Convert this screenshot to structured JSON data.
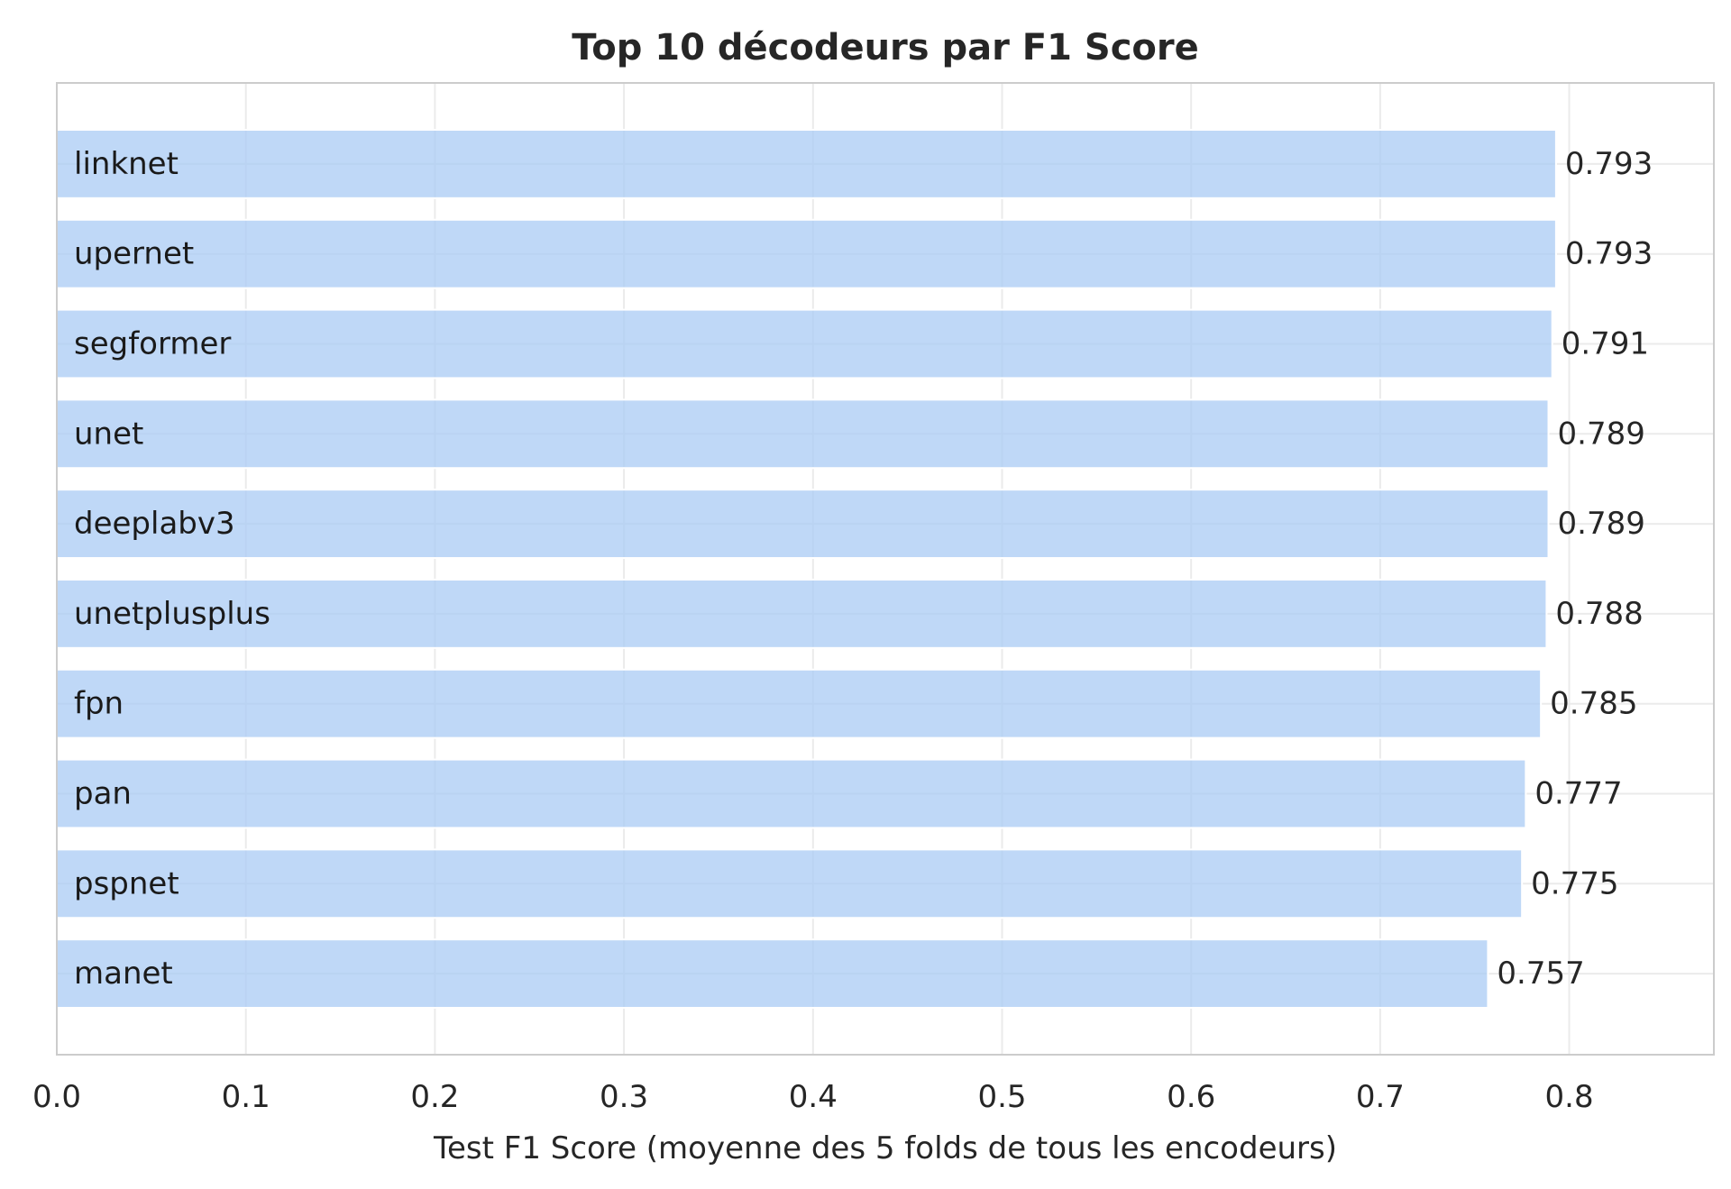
{
  "chart_data": {
    "type": "bar",
    "orientation": "horizontal",
    "title": "Top 10 décodeurs par F1 Score",
    "xlabel": "Test F1 Score (moyenne des 5 folds de tous les encodeurs)",
    "ylabel": "",
    "categories": [
      "linknet",
      "upernet",
      "segformer",
      "unet",
      "deeplabv3",
      "unetplusplus",
      "fpn",
      "pan",
      "pspnet",
      "manet"
    ],
    "values": [
      0.793,
      0.793,
      0.791,
      0.789,
      0.789,
      0.788,
      0.785,
      0.777,
      0.775,
      0.757
    ],
    "value_labels": [
      "0.793",
      "0.793",
      "0.791",
      "0.789",
      "0.789",
      "0.788",
      "0.785",
      "0.777",
      "0.775",
      "0.757"
    ],
    "xticks": [
      "0.0",
      "0.1",
      "0.2",
      "0.3",
      "0.4",
      "0.5",
      "0.6",
      "0.7",
      "0.8"
    ],
    "xlim": [
      0,
      0.8765
    ],
    "grid": true,
    "legend": "none",
    "bar_color": "#a9cbf4",
    "grid_color": "#ebebeb",
    "frame_color": "#cccccc"
  }
}
